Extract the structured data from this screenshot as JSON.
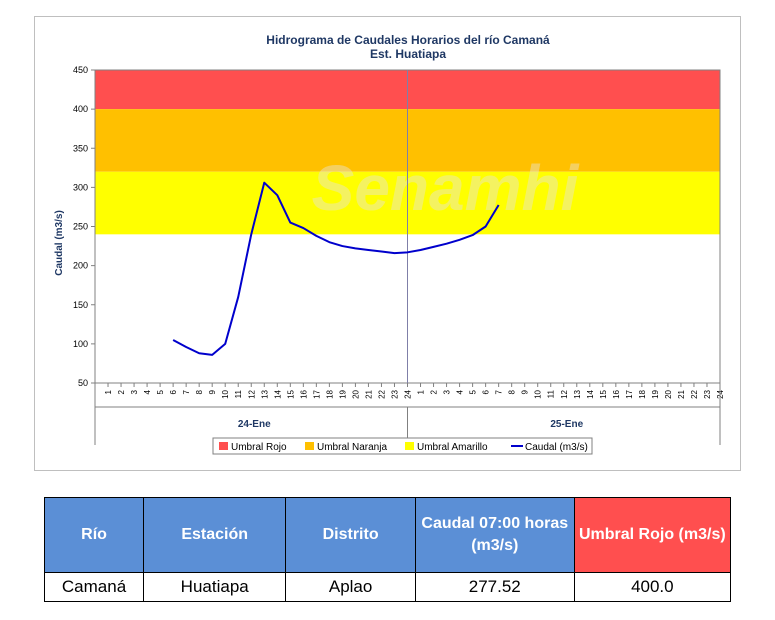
{
  "chart_data": {
    "type": "line",
    "title": "Hidrograma de Caudales Horarios del río Camaná",
    "subtitle": "Est. Huatiapa",
    "ylabel": "Caudal  (m3/s)",
    "xlabel": "",
    "ylim": [
      50,
      450
    ],
    "yticks": [
      50,
      100,
      150,
      200,
      250,
      300,
      350,
      400,
      450
    ],
    "x_hour_ticks": [
      "1",
      "2",
      "3",
      "4",
      "5",
      "6",
      "7",
      "8",
      "9",
      "10",
      "11",
      "12",
      "13",
      "14",
      "15",
      "16",
      "17",
      "18",
      "19",
      "20",
      "21",
      "22",
      "23",
      "24",
      "1",
      "2",
      "3",
      "4",
      "5",
      "6",
      "7",
      "8",
      "9",
      "10",
      "11",
      "12",
      "13",
      "14",
      "15",
      "16",
      "17",
      "18",
      "19",
      "20",
      "21",
      "22",
      "23",
      "24"
    ],
    "day_labels": [
      "24-Ene",
      "25-Ene"
    ],
    "thresholds": [
      {
        "name": "Umbral Rojo",
        "from": 400,
        "to": 450,
        "color": "#ff4f4f"
      },
      {
        "name": "Umbral Naranja",
        "from": 320,
        "to": 400,
        "color": "#ffc000"
      },
      {
        "name": "Umbral Amarillo",
        "from": 240,
        "to": 320,
        "color": "#ffff00"
      }
    ],
    "series": [
      {
        "name": "Caudal (m3/s)",
        "color": "#0000cc",
        "x": [
          6,
          7,
          8,
          9,
          10,
          11,
          12,
          13,
          14,
          15,
          16,
          17,
          18,
          19,
          20,
          21,
          22,
          23,
          24,
          25,
          26,
          27,
          28,
          29,
          30,
          31
        ],
        "values": [
          105,
          96,
          88,
          86,
          100,
          160,
          240,
          306,
          290,
          255,
          248,
          238,
          230,
          225,
          222,
          220,
          218,
          216,
          217,
          220,
          224,
          228,
          233,
          239,
          250,
          277.52
        ]
      }
    ],
    "legend": [
      "Umbral Rojo",
      "Umbral Naranja",
      "Umbral Amarillo",
      "Caudal (m3/s)"
    ],
    "legend_position": "bottom",
    "grid": false
  },
  "watermark": "Senamhi",
  "table": {
    "headers": [
      "Río",
      "Estación",
      "Distrito",
      "Caudal 07:00 horas (m3/s)",
      "Umbral Rojo (m3/s)"
    ],
    "row": [
      "Camaná",
      "Huatiapa",
      "Aplao",
      "277.52",
      "400.0"
    ]
  }
}
